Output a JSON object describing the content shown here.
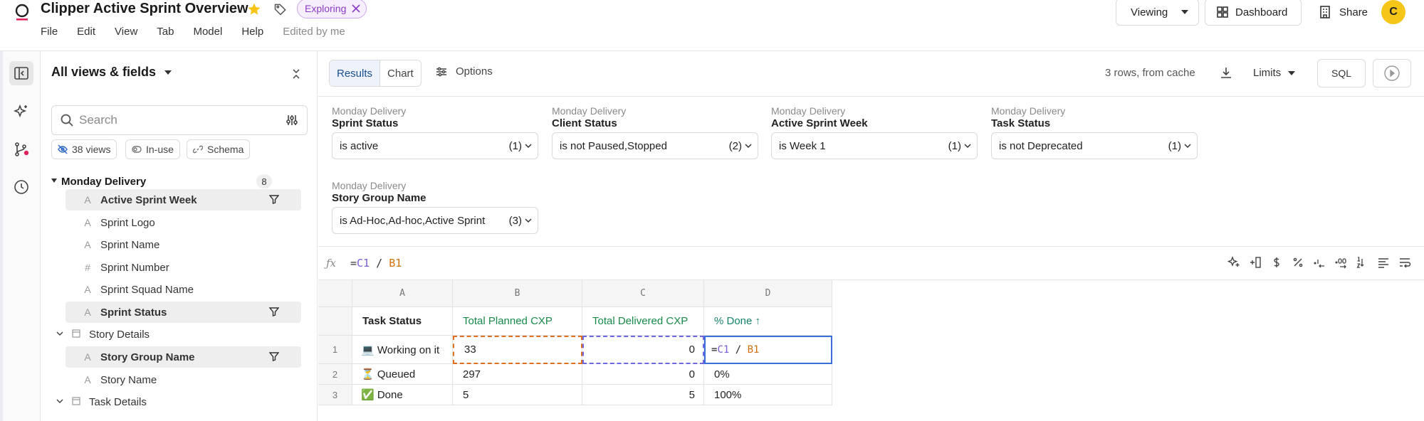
{
  "header": {
    "title": "Clipper Active Sprint Overview",
    "badge": "Exploring",
    "menu": [
      "File",
      "Edit",
      "View",
      "Tab",
      "Model",
      "Help"
    ],
    "edited": "Edited by me",
    "viewing_label": "Viewing",
    "dashboard_label": "Dashboard",
    "share_label": "Share",
    "avatar_initial": "C"
  },
  "sidebar": {
    "title": "All views & fields",
    "search_placeholder": "Search",
    "chips": {
      "views": "38 views",
      "in_use": "In-use",
      "schema": "Schema"
    },
    "group": {
      "label": "Monday Delivery",
      "count": "8"
    },
    "items": [
      {
        "label": "Active Sprint Week",
        "icon": "A"
      },
      {
        "label": "Sprint Logo",
        "icon": "A"
      },
      {
        "label": "Sprint Name",
        "icon": "A"
      },
      {
        "label": "Sprint Number",
        "icon": "#"
      },
      {
        "label": "Sprint Squad Name",
        "icon": "A"
      },
      {
        "label": "Sprint Status",
        "icon": "A"
      },
      {
        "label": "Story Details"
      },
      {
        "label": "Story Group Name",
        "icon": "A"
      },
      {
        "label": "Story Name",
        "icon": "A"
      },
      {
        "label": "Task Details"
      }
    ]
  },
  "toolbar": {
    "tab_results": "Results",
    "tab_chart": "Chart",
    "options_label": "Options",
    "rows_status": "3 rows, from cache",
    "limits_label": "Limits",
    "sql_label": "SQL"
  },
  "filters": [
    {
      "source": "Monday Delivery",
      "name": "Sprint Status",
      "value": "is active",
      "count": "(1)"
    },
    {
      "source": "Monday Delivery",
      "name": "Client Status",
      "value": "is not Paused,Stopped",
      "count": "(2)"
    },
    {
      "source": "Monday Delivery",
      "name": "Active Sprint Week",
      "value": "is Week 1",
      "count": "(1)"
    },
    {
      "source": "Monday Delivery",
      "name": "Task Status",
      "value": "is not Deprecated",
      "count": "(1)"
    },
    {
      "source": "Monday Delivery",
      "name": "Story Group Name",
      "value": "is Ad-Hoc,Ad-hoc,Active Sprint",
      "count": "(3)"
    }
  ],
  "formula": {
    "eq": "=",
    "c_ref": "C1",
    "op": " / ",
    "b_ref": "B1"
  },
  "grid": {
    "col_letters": [
      "A",
      "B",
      "C",
      "D"
    ],
    "col_names": [
      "Task Status",
      "Total Planned CXP",
      "Total Delivered CXP",
      "% Done ↑"
    ],
    "rows": [
      {
        "num": "1",
        "status": "💻 Working on it",
        "planned": "33",
        "delivered": "0"
      },
      {
        "num": "2",
        "status": "⏳ Queued",
        "planned": "297",
        "delivered": "0",
        "done": "0%"
      },
      {
        "num": "3",
        "status": "✅ Done",
        "planned": "5",
        "delivered": "5",
        "done": "100%"
      }
    ]
  },
  "colors": {
    "accent_badge": "#8a3cc7",
    "star": "#f5c518",
    "avatar": "#f5c518",
    "measure_header": "#188a4a"
  }
}
